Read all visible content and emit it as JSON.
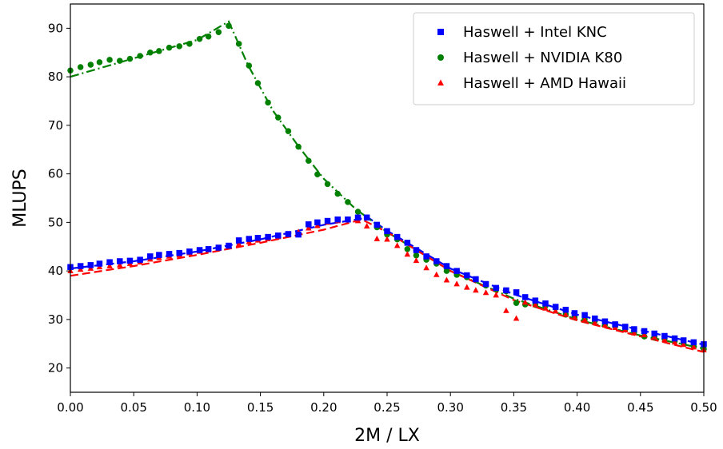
{
  "chart_data": {
    "type": "scatter",
    "title": "",
    "xlabel": "2M / LX",
    "ylabel": "MLUPS",
    "xlim": [
      0.0,
      0.5
    ],
    "ylim": [
      15,
      95
    ],
    "xticks": [
      "0.00",
      "0.05",
      "0.10",
      "0.15",
      "0.20",
      "0.25",
      "0.30",
      "0.35",
      "0.40",
      "0.45",
      "0.50"
    ],
    "yticks": [
      "20",
      "30",
      "40",
      "50",
      "60",
      "70",
      "80",
      "90"
    ],
    "grid": false,
    "legend_position": "top-right",
    "series": [
      {
        "name": "Haswell + Intel KNC",
        "color": "#0000ff",
        "marker": "square",
        "points": [
          [
            0.0,
            40.8
          ],
          [
            0.008,
            41.0
          ],
          [
            0.016,
            41.2
          ],
          [
            0.023,
            41.5
          ],
          [
            0.031,
            41.8
          ],
          [
            0.039,
            42.0
          ],
          [
            0.047,
            42.1
          ],
          [
            0.055,
            42.3
          ],
          [
            0.063,
            43.0
          ],
          [
            0.07,
            43.3
          ],
          [
            0.078,
            43.5
          ],
          [
            0.086,
            43.7
          ],
          [
            0.094,
            44.0
          ],
          [
            0.102,
            44.3
          ],
          [
            0.109,
            44.5
          ],
          [
            0.117,
            44.8
          ],
          [
            0.125,
            45.2
          ],
          [
            0.133,
            46.3
          ],
          [
            0.141,
            46.6
          ],
          [
            0.148,
            46.8
          ],
          [
            0.156,
            47.0
          ],
          [
            0.164,
            47.3
          ],
          [
            0.172,
            47.6
          ],
          [
            0.18,
            47.5
          ],
          [
            0.188,
            49.6
          ],
          [
            0.195,
            50.0
          ],
          [
            0.203,
            50.3
          ],
          [
            0.211,
            50.6
          ],
          [
            0.219,
            50.6
          ],
          [
            0.227,
            51.0
          ],
          [
            0.234,
            51.0
          ],
          [
            0.242,
            49.5
          ],
          [
            0.25,
            48.2
          ],
          [
            0.258,
            47.0
          ],
          [
            0.266,
            45.8
          ],
          [
            0.273,
            44.3
          ],
          [
            0.281,
            43.0
          ],
          [
            0.289,
            42.0
          ],
          [
            0.297,
            41.0
          ],
          [
            0.305,
            40.0
          ],
          [
            0.313,
            39.1
          ],
          [
            0.32,
            38.3
          ],
          [
            0.328,
            37.3
          ],
          [
            0.336,
            36.5
          ],
          [
            0.344,
            36.0
          ],
          [
            0.352,
            35.6
          ],
          [
            0.359,
            34.6
          ],
          [
            0.367,
            33.9
          ],
          [
            0.375,
            33.3
          ],
          [
            0.383,
            32.6
          ],
          [
            0.391,
            32.0
          ],
          [
            0.398,
            31.3
          ],
          [
            0.406,
            30.9
          ],
          [
            0.414,
            30.2
          ],
          [
            0.422,
            29.6
          ],
          [
            0.43,
            29.0
          ],
          [
            0.438,
            28.5
          ],
          [
            0.445,
            28.0
          ],
          [
            0.453,
            27.6
          ],
          [
            0.461,
            27.1
          ],
          [
            0.469,
            26.6
          ],
          [
            0.477,
            26.1
          ],
          [
            0.484,
            25.7
          ],
          [
            0.492,
            25.3
          ],
          [
            0.5,
            24.9
          ]
        ]
      },
      {
        "name": "Haswell + NVIDIA K80",
        "color": "#008000",
        "marker": "circle",
        "points": [
          [
            0.0,
            81.3
          ],
          [
            0.008,
            82.0
          ],
          [
            0.016,
            82.5
          ],
          [
            0.023,
            83.0
          ],
          [
            0.031,
            83.5
          ],
          [
            0.039,
            83.3
          ],
          [
            0.047,
            83.7
          ],
          [
            0.055,
            84.3
          ],
          [
            0.063,
            85.0
          ],
          [
            0.07,
            85.3
          ],
          [
            0.078,
            86.0
          ],
          [
            0.086,
            86.3
          ],
          [
            0.094,
            86.8
          ],
          [
            0.102,
            87.8
          ],
          [
            0.109,
            88.3
          ],
          [
            0.117,
            89.2
          ],
          [
            0.125,
            90.5
          ],
          [
            0.133,
            86.8
          ],
          [
            0.141,
            82.3
          ],
          [
            0.148,
            78.7
          ],
          [
            0.156,
            74.7
          ],
          [
            0.164,
            71.6
          ],
          [
            0.172,
            68.8
          ],
          [
            0.18,
            65.6
          ],
          [
            0.188,
            62.7
          ],
          [
            0.195,
            59.9
          ],
          [
            0.203,
            57.9
          ],
          [
            0.211,
            55.9
          ],
          [
            0.219,
            54.2
          ],
          [
            0.227,
            52.2
          ],
          [
            0.234,
            51.0
          ],
          [
            0.242,
            49.0
          ],
          [
            0.25,
            47.5
          ],
          [
            0.258,
            46.5
          ],
          [
            0.266,
            44.5
          ],
          [
            0.273,
            43.2
          ],
          [
            0.281,
            42.3
          ],
          [
            0.289,
            41.5
          ],
          [
            0.297,
            40.0
          ],
          [
            0.305,
            39.2
          ],
          [
            0.313,
            38.7
          ],
          [
            0.32,
            38.2
          ],
          [
            0.328,
            37.0
          ],
          [
            0.336,
            36.2
          ],
          [
            0.344,
            35.8
          ],
          [
            0.352,
            33.4
          ],
          [
            0.359,
            33.1
          ],
          [
            0.367,
            33.0
          ],
          [
            0.375,
            32.8
          ],
          [
            0.383,
            32.4
          ],
          [
            0.391,
            31.0
          ],
          [
            0.398,
            30.5
          ],
          [
            0.406,
            30.0
          ],
          [
            0.414,
            29.7
          ],
          [
            0.422,
            29.0
          ],
          [
            0.43,
            28.6
          ],
          [
            0.438,
            28.0
          ],
          [
            0.445,
            27.4
          ],
          [
            0.453,
            26.5
          ],
          [
            0.461,
            26.3
          ],
          [
            0.469,
            26.0
          ],
          [
            0.477,
            25.5
          ],
          [
            0.484,
            25.0
          ],
          [
            0.492,
            24.5
          ],
          [
            0.5,
            23.9
          ]
        ]
      },
      {
        "name": "Haswell + AMD Hawaii",
        "color": "#ff0000",
        "marker": "triangle",
        "points": [
          [
            0.0,
            40.0
          ],
          [
            0.008,
            40.3
          ],
          [
            0.016,
            40.5
          ],
          [
            0.023,
            40.8
          ],
          [
            0.031,
            41.0
          ],
          [
            0.039,
            41.2
          ],
          [
            0.047,
            41.5
          ],
          [
            0.055,
            41.8
          ],
          [
            0.063,
            42.4
          ],
          [
            0.07,
            42.7
          ],
          [
            0.078,
            43.0
          ],
          [
            0.086,
            43.3
          ],
          [
            0.094,
            43.7
          ],
          [
            0.102,
            44.0
          ],
          [
            0.109,
            44.3
          ],
          [
            0.117,
            44.6
          ],
          [
            0.125,
            45.0
          ],
          [
            0.133,
            45.5
          ],
          [
            0.141,
            46.0
          ],
          [
            0.148,
            46.3
          ],
          [
            0.156,
            46.6
          ],
          [
            0.164,
            47.0
          ],
          [
            0.172,
            47.5
          ],
          [
            0.18,
            48.0
          ],
          [
            0.188,
            48.8
          ],
          [
            0.195,
            49.3
          ],
          [
            0.203,
            50.0
          ],
          [
            0.211,
            50.3
          ],
          [
            0.219,
            50.5
          ],
          [
            0.227,
            50.3
          ],
          [
            0.234,
            49.2
          ],
          [
            0.242,
            46.6
          ],
          [
            0.25,
            46.5
          ],
          [
            0.258,
            45.2
          ],
          [
            0.266,
            43.4
          ],
          [
            0.273,
            42.1
          ],
          [
            0.281,
            40.6
          ],
          [
            0.289,
            39.2
          ],
          [
            0.297,
            38.1
          ],
          [
            0.305,
            37.3
          ],
          [
            0.313,
            36.6
          ],
          [
            0.32,
            36.0
          ],
          [
            0.328,
            35.5
          ],
          [
            0.336,
            35.0
          ],
          [
            0.344,
            31.8
          ],
          [
            0.352,
            30.2
          ],
          [
            0.359,
            33.5
          ],
          [
            0.367,
            33.0
          ],
          [
            0.375,
            32.3
          ],
          [
            0.383,
            31.7
          ],
          [
            0.391,
            31.0
          ],
          [
            0.398,
            30.4
          ],
          [
            0.406,
            29.9
          ],
          [
            0.414,
            29.3
          ],
          [
            0.422,
            28.8
          ],
          [
            0.43,
            28.3
          ],
          [
            0.438,
            27.8
          ],
          [
            0.445,
            27.2
          ],
          [
            0.453,
            26.8
          ],
          [
            0.461,
            26.3
          ],
          [
            0.469,
            25.8
          ],
          [
            0.477,
            25.3
          ],
          [
            0.484,
            24.8
          ],
          [
            0.492,
            24.3
          ],
          [
            0.5,
            23.7
          ]
        ]
      }
    ],
    "fit_lines": [
      {
        "series": "Haswell + Intel KNC",
        "color": "#0000ff",
        "style": "dashed",
        "points": [
          [
            0.0,
            40.5
          ],
          [
            0.05,
            42.0
          ],
          [
            0.1,
            44.0
          ],
          [
            0.15,
            46.5
          ],
          [
            0.2,
            49.5
          ],
          [
            0.235,
            51.0
          ],
          [
            0.25,
            48.3
          ],
          [
            0.3,
            40.5
          ],
          [
            0.35,
            35.2
          ],
          [
            0.4,
            31.0
          ],
          [
            0.45,
            27.8
          ],
          [
            0.5,
            24.8
          ]
        ]
      },
      {
        "series": "Haswell + NVIDIA K80",
        "color": "#008000",
        "style": "dashdot",
        "points": [
          [
            0.0,
            80.0
          ],
          [
            0.05,
            83.8
          ],
          [
            0.1,
            87.6
          ],
          [
            0.125,
            91.4
          ],
          [
            0.14,
            82.5
          ],
          [
            0.16,
            73.0
          ],
          [
            0.18,
            65.7
          ],
          [
            0.2,
            59.0
          ],
          [
            0.225,
            52.8
          ],
          [
            0.25,
            48.0
          ],
          [
            0.3,
            40.0
          ],
          [
            0.35,
            34.3
          ],
          [
            0.4,
            30.0
          ],
          [
            0.45,
            26.7
          ],
          [
            0.5,
            24.0
          ]
        ]
      },
      {
        "series": "Haswell + AMD Hawaii",
        "color": "#ff0000",
        "style": "dashed",
        "points": [
          [
            0.0,
            39.0
          ],
          [
            0.05,
            41.0
          ],
          [
            0.1,
            43.3
          ],
          [
            0.15,
            45.8
          ],
          [
            0.2,
            48.5
          ],
          [
            0.23,
            50.6
          ],
          [
            0.25,
            48.0
          ],
          [
            0.3,
            40.0
          ],
          [
            0.35,
            34.0
          ],
          [
            0.4,
            29.8
          ],
          [
            0.45,
            26.5
          ],
          [
            0.5,
            23.3
          ]
        ]
      }
    ]
  }
}
